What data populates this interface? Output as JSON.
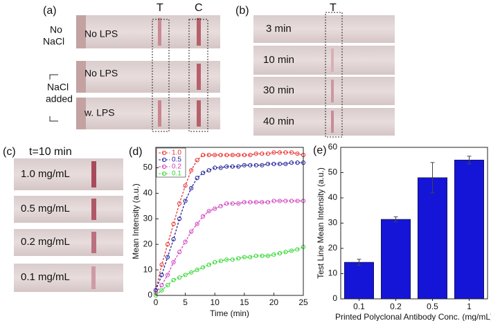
{
  "panel_a": {
    "label": "(a)",
    "t_label": "T",
    "c_label": "C",
    "group_1": [
      "No",
      "NaCl"
    ],
    "group_2": [
      "NaCl",
      "added"
    ],
    "strips": [
      "No LPS",
      "No LPS",
      "w. LPS"
    ]
  },
  "panel_b": {
    "label": "(b)",
    "t_label": "T",
    "strips": [
      "3 min",
      "10 min",
      "30 min",
      "40 min"
    ]
  },
  "panel_c": {
    "label": "(c)",
    "title": "t=10 min",
    "strips": [
      "1.0 mg/mL",
      "0.5 mg/mL",
      "0.2 mg/mL",
      "0.1 mg/mL"
    ]
  },
  "chart_data": [
    {
      "type": "line",
      "label": "(d)",
      "x_label": "Time (min)",
      "y_label": "Mean Intensity (a.u.)",
      "x": [
        0,
        1,
        2,
        3,
        4,
        5,
        6,
        7,
        8,
        9,
        10,
        11,
        12,
        13,
        14,
        15,
        16,
        17,
        18,
        19,
        20,
        21,
        22,
        23,
        24,
        25
      ],
      "series": [
        {
          "name": "1.0",
          "color": "#e8302f",
          "values": [
            2,
            12,
            20,
            28,
            36,
            43,
            49,
            53,
            55,
            55,
            55,
            55,
            55,
            55,
            55,
            55,
            55,
            55.5,
            55.5,
            55.5,
            56,
            56,
            56,
            56,
            55.5,
            55
          ]
        },
        {
          "name": "0.5",
          "color": "#1f1f9a",
          "values": [
            2,
            8,
            15,
            22,
            30,
            37,
            42,
            46,
            48,
            49,
            50,
            50,
            50.5,
            50.5,
            50.5,
            51,
            51,
            51,
            51,
            51.5,
            51.5,
            51.5,
            51.5,
            52,
            52,
            52
          ]
        },
        {
          "name": "0.2",
          "color": "#d040c0",
          "values": [
            1,
            4,
            8,
            13,
            17,
            21,
            25,
            28,
            31,
            33,
            34,
            35,
            36,
            36,
            36,
            36.5,
            36.5,
            36.5,
            36.5,
            36.5,
            37,
            37,
            37,
            37,
            37,
            37
          ]
        },
        {
          "name": "0.1",
          "color": "#30d830",
          "values": [
            0,
            2,
            4,
            6,
            7,
            8,
            9,
            10,
            11,
            12,
            13,
            13.5,
            14,
            14,
            14.5,
            15,
            15,
            15.5,
            15.5,
            15.5,
            16,
            16.5,
            17,
            17.5,
            18,
            19
          ]
        }
      ],
      "xlim": [
        0,
        25
      ],
      "xticks": [
        0,
        5,
        10,
        15,
        20,
        25
      ],
      "ylim": [
        0,
        58
      ],
      "yticks": [
        0,
        10,
        20,
        30,
        40,
        50
      ]
    },
    {
      "type": "bar",
      "label": "(e)",
      "x_label": "Printed Polyclonal Antibody Conc. (mg/mL)",
      "y_label": "Test Line Mean Intensity (a.u.)",
      "categories": [
        "0.1",
        "0.2",
        "0.5",
        "1"
      ],
      "values": [
        14.5,
        31.5,
        48,
        55
      ],
      "errors": [
        1.2,
        1,
        6,
        1.5
      ],
      "color": "#1515d8",
      "ylim": [
        0,
        60
      ],
      "yticks": [
        0,
        10,
        20,
        30,
        40,
        50,
        60
      ]
    }
  ]
}
